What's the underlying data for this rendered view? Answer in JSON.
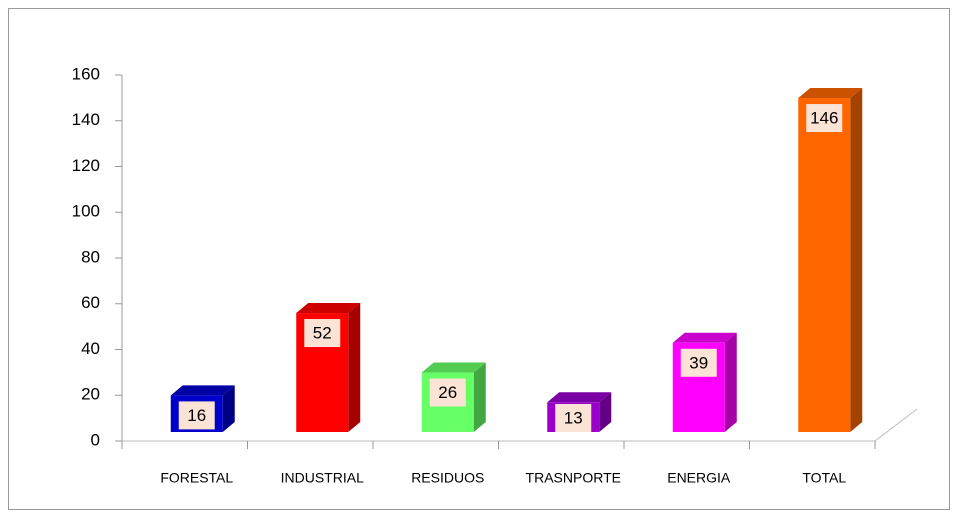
{
  "chart_data": {
    "type": "bar",
    "categories": [
      "FORESTAL",
      "INDUSTRIAL",
      "RESIDUOS",
      "TRASNPORTE",
      "ENERGIA",
      "TOTAL"
    ],
    "values": [
      16,
      52,
      26,
      13,
      39,
      146
    ],
    "colors": [
      "#0000cc",
      "#ff0000",
      "#66ff66",
      "#9900cc",
      "#ff00ff",
      "#ff6600"
    ],
    "ylim": [
      0,
      160
    ],
    "yticks": [
      0,
      20,
      40,
      60,
      80,
      100,
      120,
      140,
      160
    ],
    "grid": false
  }
}
